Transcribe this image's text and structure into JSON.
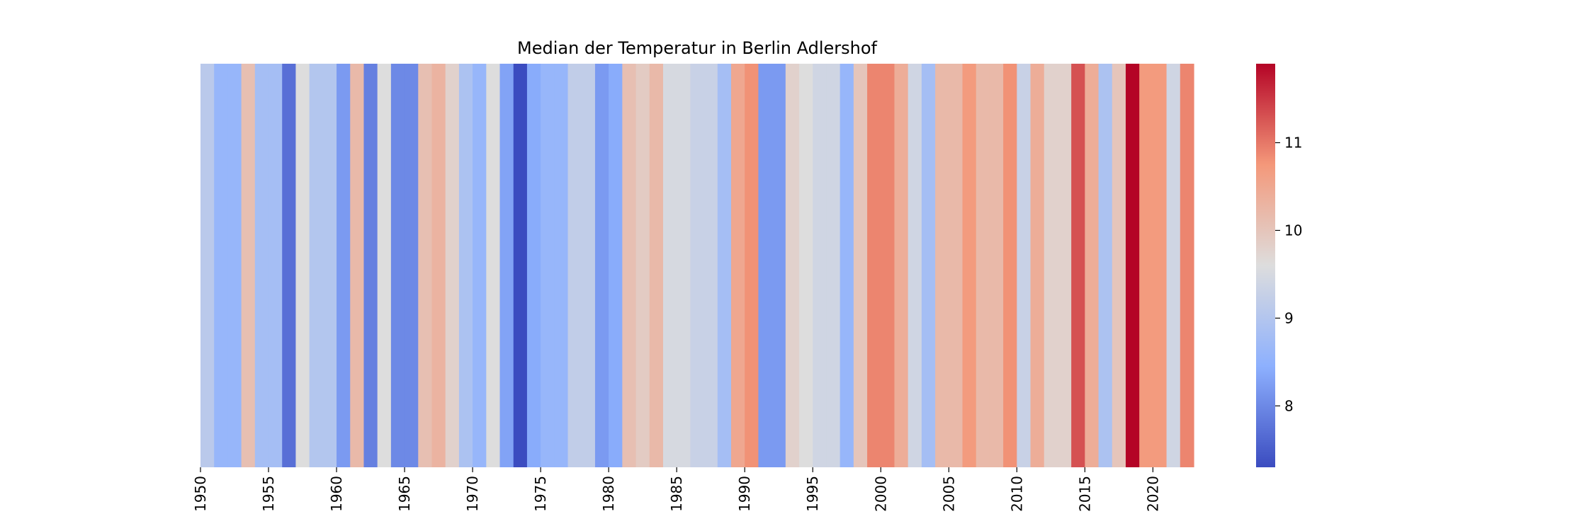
{
  "chart_data": {
    "type": "heatmap",
    "title": "Median der Temperatur in Berlin Adlershof",
    "xlabel": "",
    "ylabel": "",
    "colormap": "coolwarm",
    "x": [
      1950,
      1951,
      1952,
      1953,
      1954,
      1955,
      1956,
      1957,
      1958,
      1959,
      1960,
      1961,
      1962,
      1963,
      1964,
      1965,
      1966,
      1967,
      1968,
      1969,
      1970,
      1971,
      1972,
      1973,
      1974,
      1975,
      1976,
      1977,
      1978,
      1979,
      1980,
      1981,
      1982,
      1983,
      1984,
      1985,
      1986,
      1987,
      1988,
      1989,
      1990,
      1991,
      1992,
      1993,
      1994,
      1995,
      1996,
      1997,
      1998,
      1999,
      2000,
      2001,
      2002,
      2003,
      2004,
      2005,
      2006,
      2007,
      2008,
      2009,
      2010,
      2011,
      2012,
      2013,
      2014,
      2015,
      2016,
      2017,
      2018,
      2019,
      2020,
      2021,
      2022
    ],
    "values": [
      9.1,
      8.6,
      8.6,
      10.1,
      8.8,
      8.8,
      7.7,
      9.6,
      9.0,
      9.0,
      8.2,
      10.2,
      7.9,
      9.6,
      8.0,
      8.0,
      10.1,
      10.3,
      9.8,
      8.9,
      8.6,
      9.6,
      8.3,
      7.3,
      8.4,
      8.6,
      8.6,
      9.2,
      9.2,
      8.2,
      8.4,
      10.1,
      9.9,
      10.2,
      9.5,
      9.5,
      9.3,
      9.3,
      8.8,
      10.5,
      10.8,
      8.2,
      8.2,
      9.8,
      9.6,
      9.4,
      9.4,
      8.6,
      10.0,
      10.9,
      10.9,
      10.4,
      9.4,
      8.8,
      10.2,
      10.2,
      10.7,
      10.2,
      10.2,
      10.8,
      9.3,
      10.4,
      9.8,
      9.8,
      11.3,
      10.4,
      8.9,
      10.0,
      11.9,
      10.7,
      10.7,
      9.4,
      10.9
    ],
    "vmin": 7.3,
    "vmax": 11.9,
    "xticks": [
      1950,
      1955,
      1960,
      1965,
      1970,
      1975,
      1980,
      1985,
      1990,
      1995,
      2000,
      2005,
      2010,
      2015,
      2020
    ],
    "colorbar": {
      "ticks": [
        8,
        9,
        10,
        11
      ],
      "tick_labels": [
        "8",
        "9",
        "10",
        "11"
      ]
    }
  }
}
